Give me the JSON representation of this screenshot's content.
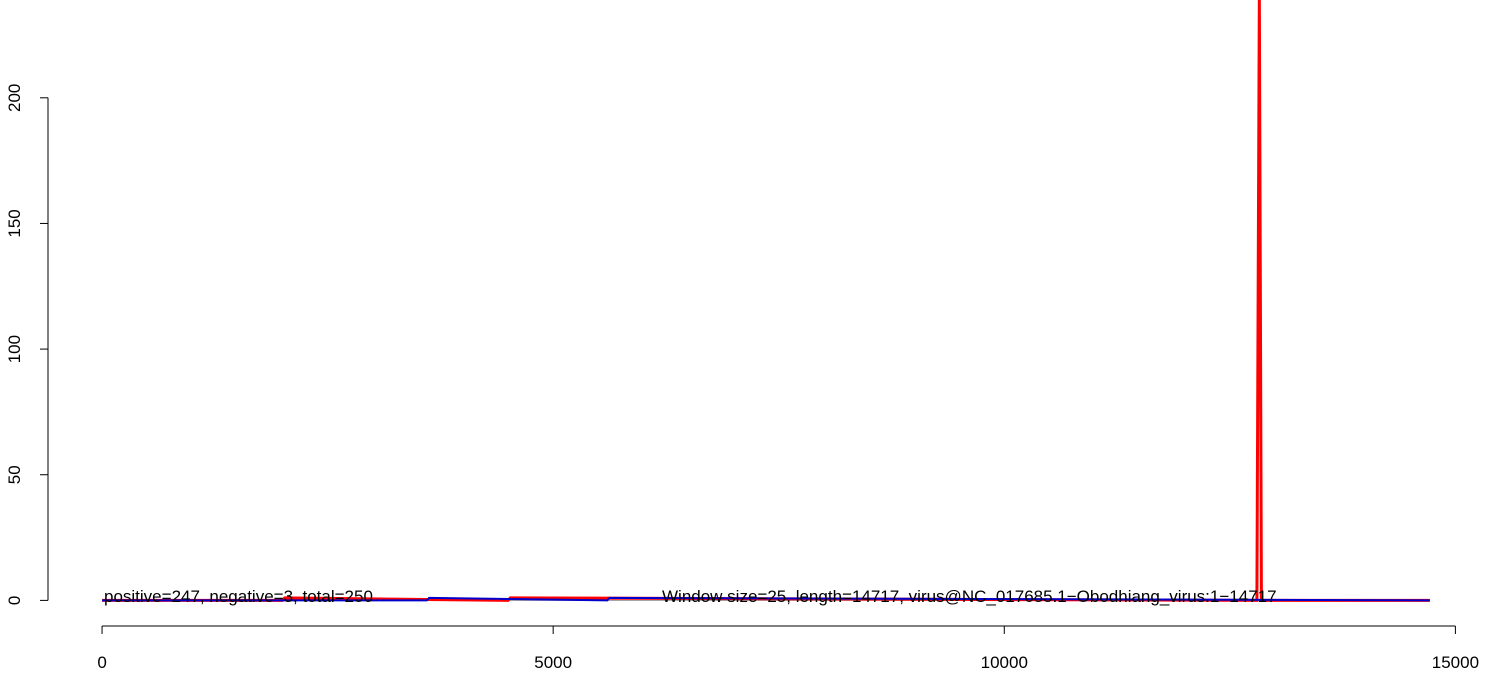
{
  "chart_data": {
    "type": "line",
    "annotations": [
      "positive=247, negative=3, total=250",
      "Window size=25, length=14717, virus@NC_017685.1−Obodhiang_virus:1−14717"
    ],
    "series": [
      {
        "color": "#ff0000",
        "x": [
          1,
          2000,
          2025,
          4500,
          4525,
          12800,
          12827,
          12850,
          14717
        ],
        "values": [
          0,
          0,
          1,
          0,
          1,
          0,
          240,
          0,
          0
        ]
      },
      {
        "color": "#0000cc",
        "x": [
          1,
          3600,
          3625,
          5600,
          5625,
          14717
        ],
        "values": [
          0,
          0,
          1,
          0,
          1,
          0
        ]
      }
    ],
    "xlim": [
      -588,
      15306
    ],
    "xticks": [
      0,
      5000,
      10000,
      15000
    ],
    "ylim": [
      -9,
      223
    ],
    "yticks": [
      0,
      50,
      100,
      150,
      200
    ]
  }
}
